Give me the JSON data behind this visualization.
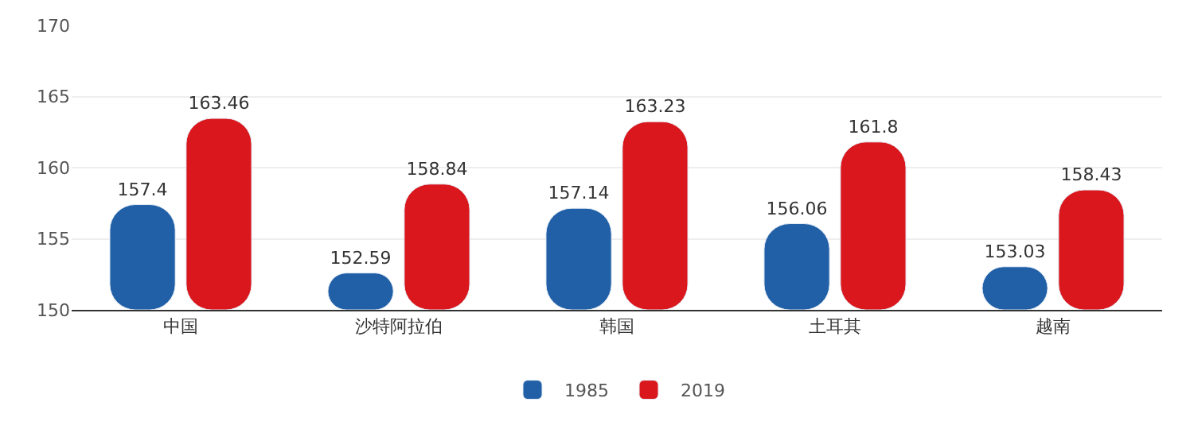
{
  "chart_data": {
    "type": "bar",
    "categories": [
      "中国",
      "沙特阿拉伯",
      "韩国",
      "土耳其",
      "越南"
    ],
    "series": [
      {
        "name": "1985",
        "color": "#2160a6",
        "values": [
          157.4,
          152.59,
          157.14,
          156.06,
          153.03
        ]
      },
      {
        "name": "2019",
        "color": "#d9171c",
        "values": [
          163.46,
          158.84,
          163.23,
          161.8,
          158.43
        ]
      }
    ],
    "ylim": [
      150,
      170
    ],
    "yticks": [
      150,
      155,
      160,
      165,
      170
    ],
    "grid": "y",
    "legend": "bottom",
    "data_labels": true
  }
}
